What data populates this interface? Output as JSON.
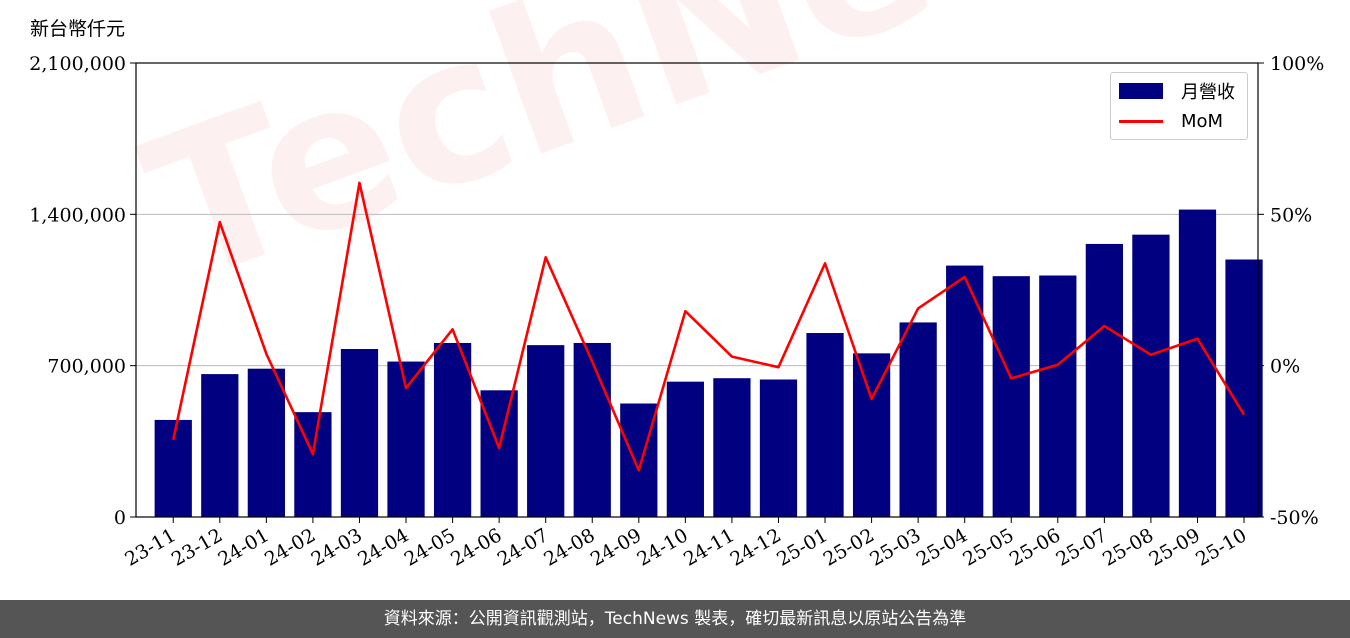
{
  "unit_label": "新台幣仟元",
  "footer_text": "資料來源：公開資訊觀測站，TechNews 製表，確切最新訊息以原站公告為準",
  "watermark": "TechNews",
  "legend": {
    "bar_label": "月營收",
    "line_label": "MoM"
  },
  "colors": {
    "bar": "#000080",
    "line": "#ff0000",
    "grid": "#bbbbbb",
    "footer": "#555555"
  },
  "chart_data": {
    "type": "bar",
    "categories": [
      "23-11",
      "23-12",
      "24-01",
      "24-02",
      "24-03",
      "24-04",
      "24-05",
      "24-06",
      "24-07",
      "24-08",
      "24-09",
      "24-10",
      "24-11",
      "24-12",
      "25-01",
      "25-02",
      "25-03",
      "25-04",
      "25-05",
      "25-06",
      "25-07",
      "25-08",
      "25-09",
      "25-10"
    ],
    "series": [
      {
        "name": "月營收",
        "type": "bar",
        "axis": "left",
        "values": [
          449000,
          661000,
          686000,
          485000,
          777000,
          719000,
          805000,
          586000,
          795000,
          805000,
          525000,
          626000,
          642000,
          636000,
          851000,
          757000,
          900000,
          1163000,
          1114000,
          1117000,
          1263000,
          1306000,
          1422000,
          1191000
        ]
      },
      {
        "name": "MoM",
        "type": "line",
        "axis": "right",
        "unit": "%",
        "values": [
          -24.5,
          47.4,
          3.9,
          -29.2,
          60.4,
          -7.4,
          12.0,
          -27.2,
          35.8,
          1.3,
          -34.6,
          18.0,
          3.0,
          -0.5,
          33.8,
          -11.0,
          18.9,
          29.3,
          -4.2,
          0.3,
          13.1,
          3.6,
          8.9,
          -16.2
        ]
      }
    ],
    "y_left": {
      "min": 0,
      "max": 2100000,
      "ticks": [
        0,
        700000,
        1400000,
        2100000
      ],
      "tick_labels": [
        "0",
        "700,000",
        "1,400,000",
        "2,100,000"
      ]
    },
    "y_right": {
      "min": -50,
      "max": 100,
      "ticks": [
        -50,
        0,
        50,
        100
      ],
      "tick_labels": [
        "-50%",
        "0%",
        "50%",
        "100%"
      ]
    },
    "grid": "horizontal",
    "legend_position": "top-right"
  }
}
